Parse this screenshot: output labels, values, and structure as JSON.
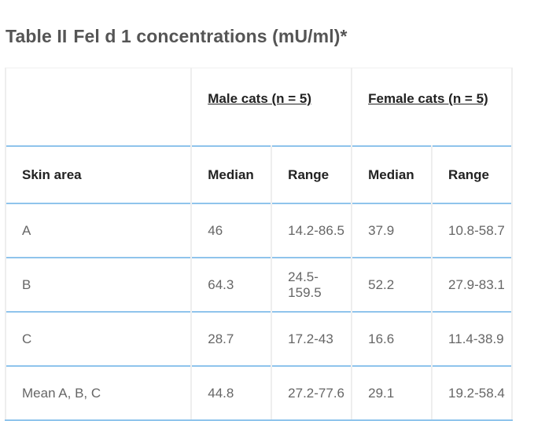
{
  "title": {
    "label": "Table II",
    "text": "Fel d 1 concentrations (mU/ml)*"
  },
  "table": {
    "groups": [
      "Male cats (n = 5)",
      "Female cats (n = 5)"
    ],
    "headers": [
      "Skin area",
      "Median",
      "Range",
      "Median",
      "Range"
    ],
    "rows": [
      [
        "A",
        "46",
        "14.2-86.5",
        "37.9",
        "10.8-58.7"
      ],
      [
        "B",
        "64.3",
        "24.5-159.5",
        "52.2",
        "27.9-83.1"
      ],
      [
        "C",
        "28.7",
        "17.2-43",
        "16.6",
        "11.4-38.9"
      ],
      [
        "Mean A, B, C",
        "44.8",
        "27.2-77.6",
        "29.1",
        "19.2-58.4"
      ]
    ]
  },
  "colors": {
    "rule": "#8fc4ec",
    "title": "#555555",
    "header_text": "#222222",
    "cell_text": "#666666"
  }
}
